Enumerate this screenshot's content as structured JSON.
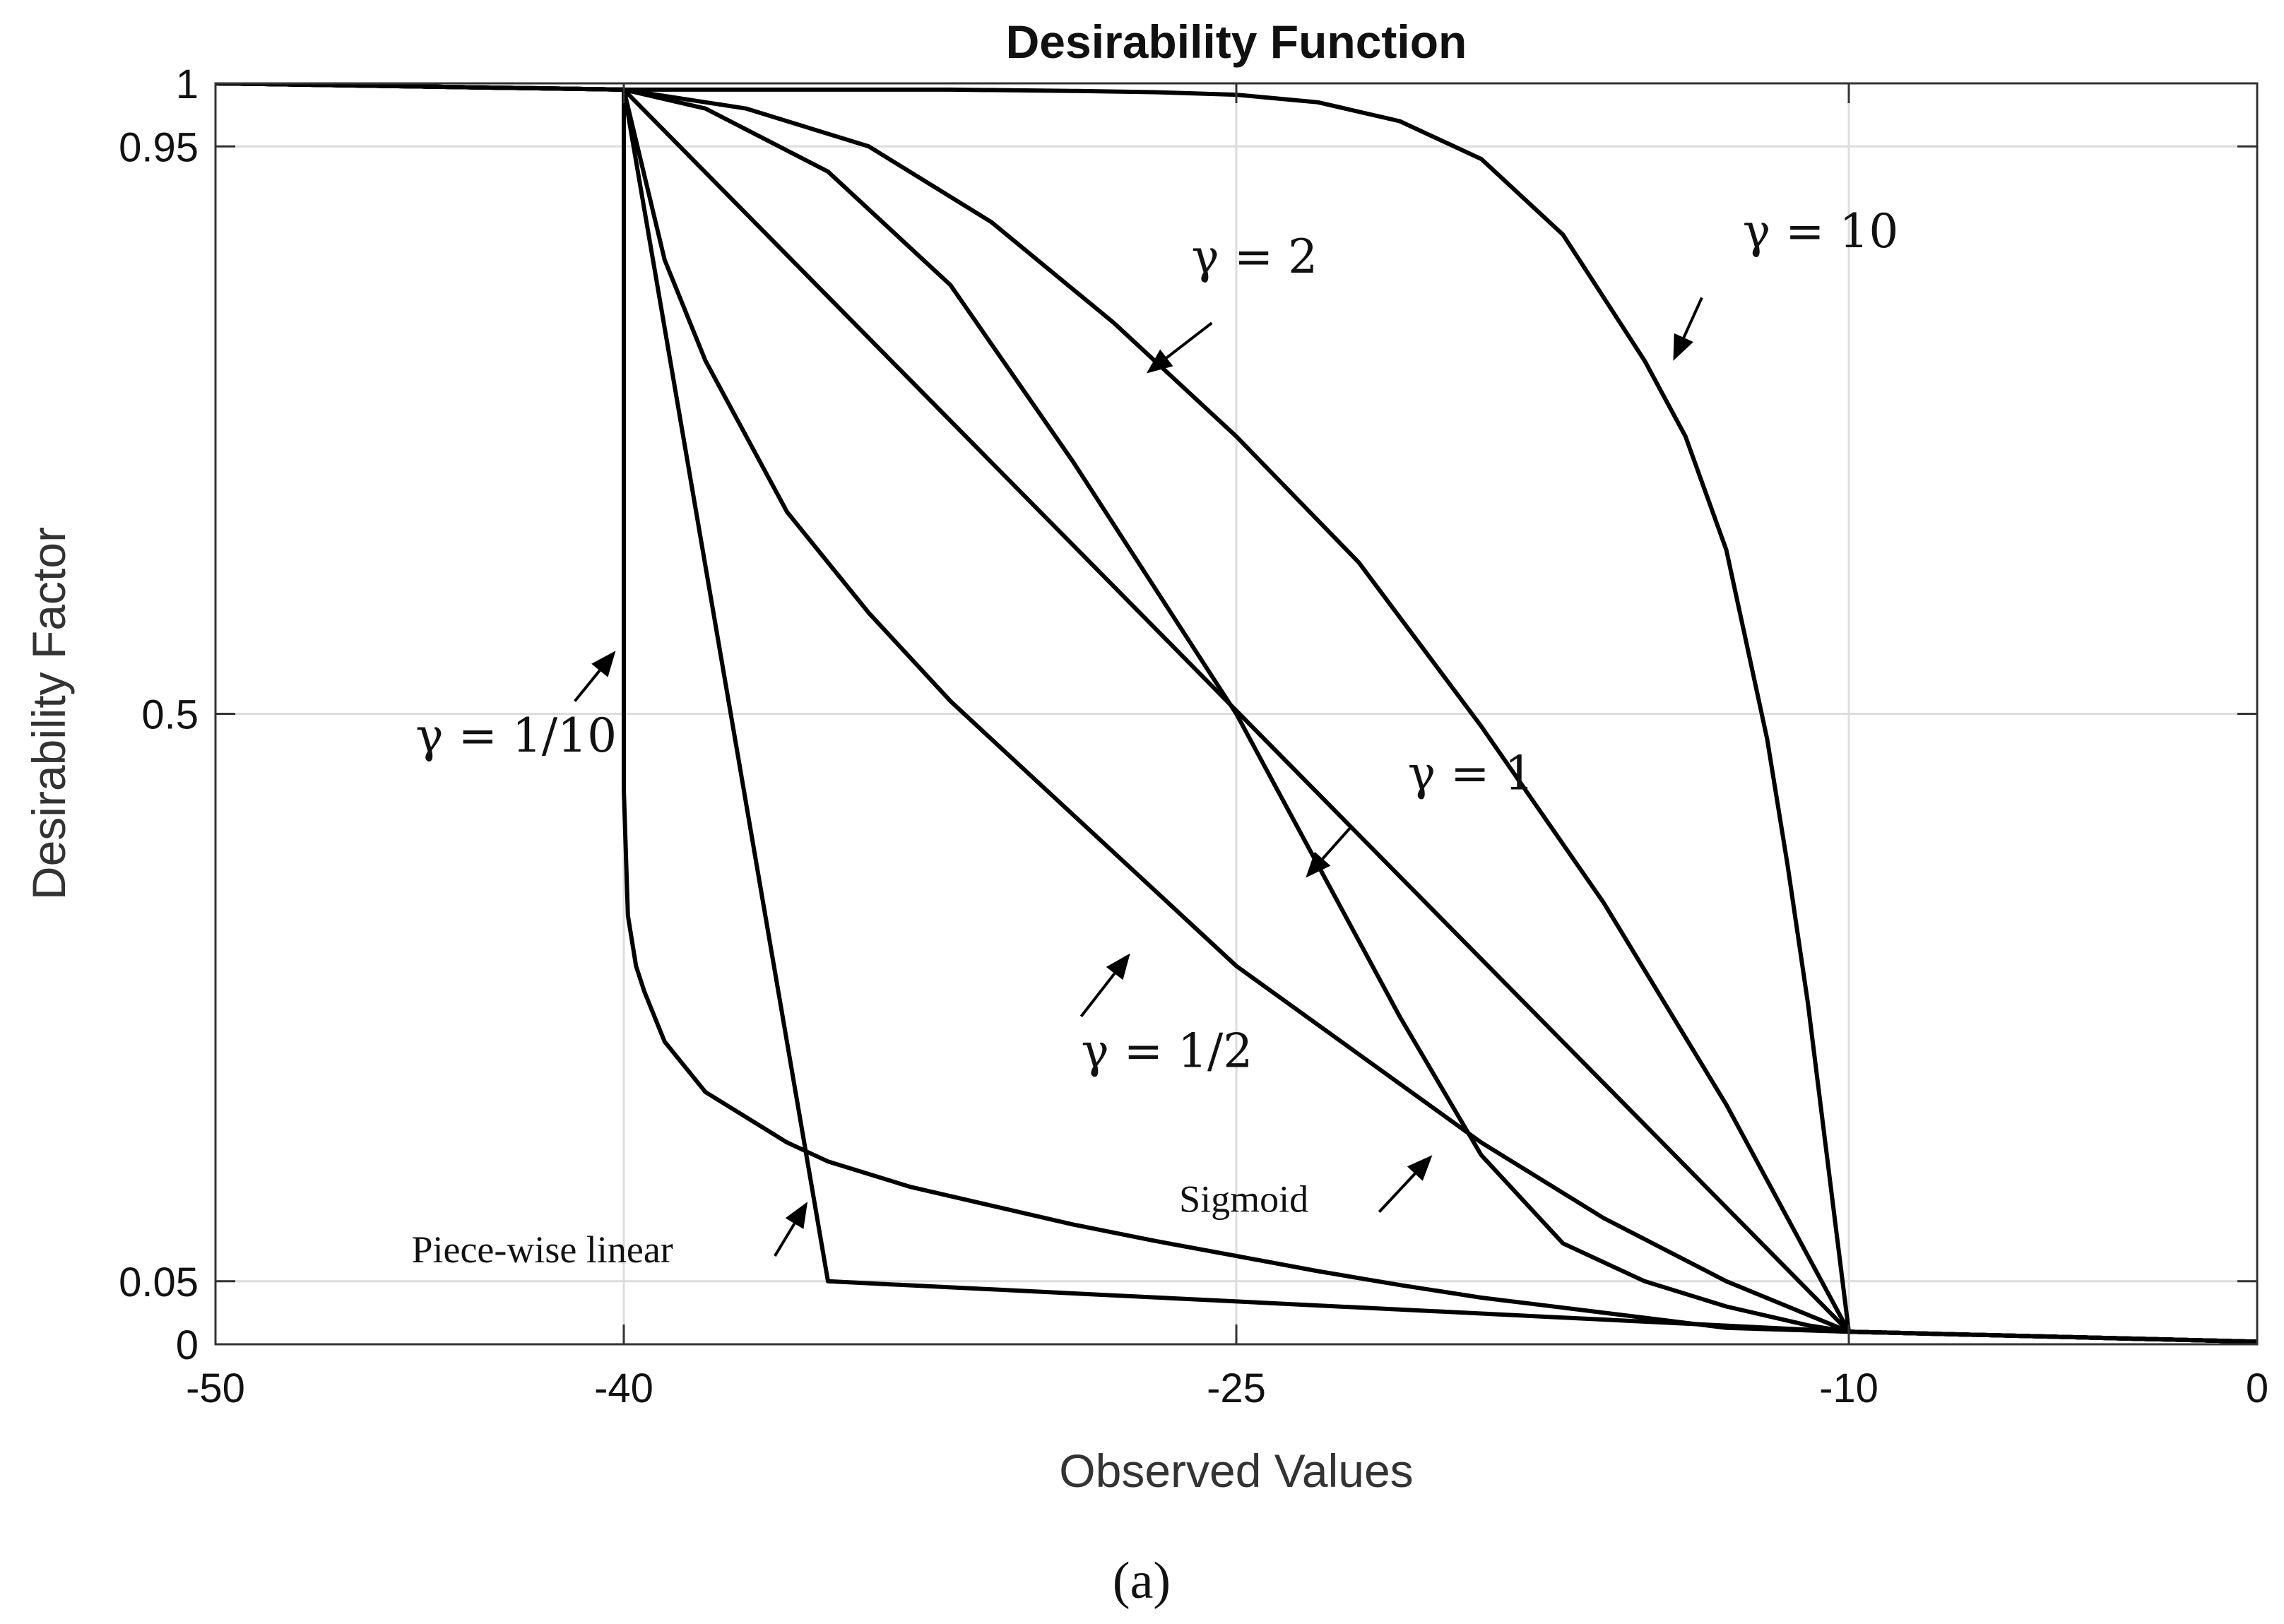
{
  "chart_data": {
    "type": "line",
    "title": "Desirability Function",
    "xlabel": "Observed Values",
    "ylabel": "Desirability Factor",
    "xlim": [
      -50,
      0
    ],
    "ylim": [
      0,
      1
    ],
    "x_ticks": [
      -50,
      -40,
      -25,
      -10,
      0
    ],
    "x_tick_labels": [
      "-50",
      "-40",
      "-25",
      "-10",
      "0"
    ],
    "y_ticks": [
      0,
      0.05,
      0.5,
      0.95,
      1
    ],
    "y_tick_labels": [
      "0",
      "0.05",
      "0.5",
      "0.95",
      "1"
    ],
    "grid": true,
    "legend": "none",
    "series": [
      {
        "name": "γ = 10",
        "x": [
          -50,
          -40,
          -36,
          -32,
          -29,
          -27,
          -25,
          -23,
          -21,
          -19,
          -17,
          -15,
          -14,
          -13,
          -12,
          -11.5,
          -11,
          -10.5,
          -10,
          -5,
          0
        ],
        "y": [
          1,
          0.995,
          0.995,
          0.995,
          0.994,
          0.993,
          0.991,
          0.985,
          0.97,
          0.94,
          0.88,
          0.78,
          0.72,
          0.63,
          0.48,
          0.38,
          0.27,
          0.14,
          0.01,
          0.006,
          0.002
        ]
      },
      {
        "name": "γ = 2",
        "x": [
          -50,
          -40,
          -37,
          -34,
          -31,
          -28,
          -25,
          -22,
          -19,
          -16,
          -13,
          -10,
          -5,
          0
        ],
        "y": [
          1,
          0.995,
          0.98,
          0.95,
          0.89,
          0.81,
          0.72,
          0.62,
          0.49,
          0.35,
          0.19,
          0.01,
          0.006,
          0.002
        ]
      },
      {
        "name": "γ = 1",
        "x": [
          -50,
          -40,
          -10,
          -5,
          0
        ],
        "y": [
          1,
          0.995,
          0.01,
          0.006,
          0.002
        ]
      },
      {
        "name": "γ = 1/2",
        "x": [
          -50,
          -40,
          -39,
          -38,
          -37,
          -36,
          -34,
          -32,
          -30,
          -28,
          -25,
          -22,
          -19,
          -16,
          -13,
          -10,
          -5,
          0
        ],
        "y": [
          1,
          0.995,
          0.86,
          0.78,
          0.72,
          0.66,
          0.58,
          0.51,
          0.45,
          0.39,
          0.3,
          0.23,
          0.16,
          0.1,
          0.05,
          0.01,
          0.006,
          0.002
        ]
      },
      {
        "name": "γ = 1/10",
        "x": [
          -50,
          -40,
          -40,
          -39.9,
          -39.7,
          -39.5,
          -39,
          -38,
          -37,
          -36,
          -35,
          -33,
          -31,
          -29,
          -27,
          -25,
          -23,
          -21,
          -19,
          -17,
          -15,
          -13,
          -10,
          -5,
          0
        ],
        "y": [
          1,
          0.995,
          0.44,
          0.34,
          0.3,
          0.28,
          0.24,
          0.2,
          0.18,
          0.16,
          0.145,
          0.125,
          0.11,
          0.095,
          0.082,
          0.07,
          0.058,
          0.047,
          0.037,
          0.029,
          0.021,
          0.013,
          0.01,
          0.006,
          0.002
        ]
      },
      {
        "name": "Sigmoid",
        "x": [
          -50,
          -40,
          -38,
          -35,
          -32,
          -29,
          -27,
          -25,
          -23,
          -21,
          -19,
          -17,
          -15,
          -13,
          -11,
          -10,
          -5,
          0
        ],
        "y": [
          1,
          0.995,
          0.98,
          0.93,
          0.84,
          0.7,
          0.6,
          0.5,
          0.38,
          0.26,
          0.15,
          0.08,
          0.05,
          0.03,
          0.015,
          0.01,
          0.006,
          0.002
        ]
      },
      {
        "name": "Piece-wise linear",
        "x": [
          -50,
          -40,
          -35,
          -10,
          -5,
          0
        ],
        "y": [
          1,
          0.995,
          0.05,
          0.01,
          0.006,
          0.002
        ]
      }
    ],
    "annotations": [
      {
        "text": "γ = 10",
        "series": "γ = 10",
        "label_at": [
          -12.6,
          0.87
        ],
        "arrow_from": [
          -13.6,
          0.83
        ],
        "arrow_to": [
          -14.3,
          0.78
        ]
      },
      {
        "text": "γ = 2",
        "series": "γ = 2",
        "label_at": [
          -26.1,
          0.85
        ],
        "arrow_from": [
          -25.6,
          0.81
        ],
        "arrow_to": [
          -27.2,
          0.77
        ]
      },
      {
        "text": "γ = 1",
        "series": "γ = 1",
        "label_at": [
          -20.8,
          0.44
        ],
        "arrow_from": [
          -22.2,
          0.41
        ],
        "arrow_to": [
          -23.3,
          0.37
        ]
      },
      {
        "text": "γ = 1/2",
        "series": "γ = 1/2",
        "label_at": [
          -28.8,
          0.22
        ],
        "arrow_from": [
          -28.8,
          0.26
        ],
        "arrow_to": [
          -27.6,
          0.31
        ]
      },
      {
        "text": "γ = 1/10",
        "series": "γ = 1/10",
        "label_at": [
          -45.1,
          0.47
        ],
        "arrow_from": [
          -41.2,
          0.51
        ],
        "arrow_to": [
          -40.2,
          0.55
        ]
      },
      {
        "text": "Sigmoid",
        "series": "Sigmoid",
        "label_at": [
          -26.4,
          0.105
        ],
        "arrow_from": [
          -21.5,
          0.105
        ],
        "arrow_to": [
          -20.2,
          0.15
        ]
      },
      {
        "text": "Piece-wise linear",
        "series": "Piece-wise linear",
        "label_at": [
          -45.2,
          0.065
        ],
        "arrow_from": [
          -36.3,
          0.07
        ],
        "arrow_to": [
          -35.5,
          0.113
        ]
      }
    ]
  },
  "caption": "(a)"
}
